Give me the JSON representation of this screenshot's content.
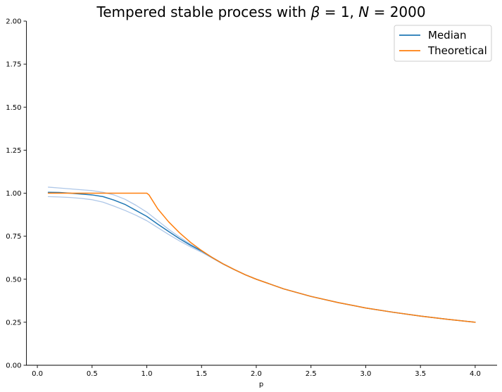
{
  "chart_data": {
    "type": "line",
    "title": "Tempered stable process with β = 1, N = 2000",
    "title_parts": {
      "prefix": "Tempered stable process with ",
      "beta_symbol": "β",
      "beta_eq": " = 1, ",
      "n_symbol": "N",
      "n_eq": " = 2000"
    },
    "xlabel": "p",
    "ylabel": "",
    "xlim": [
      -0.1,
      4.2
    ],
    "ylim": [
      0.0,
      2.0
    ],
    "xticks": [
      "0.0",
      "0.5",
      "1.0",
      "1.5",
      "2.0",
      "2.5",
      "3.0",
      "3.5",
      "4.0"
    ],
    "yticks": [
      "0.00",
      "0.25",
      "0.50",
      "0.75",
      "1.00",
      "1.25",
      "1.50",
      "1.75",
      "2.00"
    ],
    "grid": false,
    "legend_position": "top-right",
    "series": [
      {
        "name": "Median",
        "color": "#1f77b4",
        "x": [
          0.1,
          0.2,
          0.3,
          0.4,
          0.5,
          0.6,
          0.7,
          0.8,
          0.9,
          1.0,
          1.1,
          1.2,
          1.3,
          1.4,
          1.5,
          1.6,
          1.7,
          1.8,
          1.9,
          2.0,
          2.25,
          2.5,
          2.75,
          3.0,
          3.25,
          3.5,
          3.75,
          4.0
        ],
        "y": [
          1.005,
          1.004,
          1.0,
          0.995,
          0.99,
          0.98,
          0.96,
          0.935,
          0.9,
          0.865,
          0.82,
          0.777,
          0.735,
          0.697,
          0.664,
          0.625,
          0.588,
          0.556,
          0.526,
          0.5,
          0.444,
          0.4,
          0.364,
          0.333,
          0.308,
          0.286,
          0.267,
          0.25
        ]
      },
      {
        "name": "Theoretical",
        "color": "#ff7f0e",
        "x": [
          0.1,
          0.2,
          0.3,
          0.4,
          0.5,
          0.6,
          0.7,
          0.8,
          0.9,
          1.0,
          1.02,
          1.1,
          1.2,
          1.3,
          1.4,
          1.5,
          1.6,
          1.7,
          1.8,
          1.9,
          2.0,
          2.25,
          2.5,
          2.75,
          3.0,
          3.25,
          3.5,
          3.75,
          4.0
        ],
        "y": [
          1.0,
          1.0,
          1.0,
          1.0,
          1.0,
          1.0,
          1.0,
          1.0,
          1.0,
          1.0,
          0.99,
          0.909,
          0.833,
          0.769,
          0.714,
          0.667,
          0.625,
          0.588,
          0.556,
          0.526,
          0.5,
          0.444,
          0.4,
          0.364,
          0.333,
          0.308,
          0.286,
          0.267,
          0.25
        ]
      },
      {
        "color": "#aec7e8",
        "x": [
          0.1,
          0.2,
          0.3,
          0.4,
          0.5,
          0.6,
          0.7,
          0.8,
          0.9,
          1.0,
          1.1,
          1.2,
          1.3,
          1.4,
          1.5,
          1.6,
          1.7,
          1.8,
          1.9,
          2.0,
          2.25,
          2.5,
          2.75,
          3.0,
          3.25,
          3.5,
          3.75,
          4.0
        ],
        "y": [
          1.035,
          1.03,
          1.025,
          1.02,
          1.015,
          1.005,
          0.99,
          0.965,
          0.93,
          0.89,
          0.84,
          0.79,
          0.745,
          0.703,
          0.666,
          0.626,
          0.589,
          0.556,
          0.526,
          0.5,
          0.444,
          0.4,
          0.364,
          0.333,
          0.308,
          0.286,
          0.267,
          0.25
        ]
      },
      {
        "color": "#aec7e8",
        "x": [
          0.1,
          0.2,
          0.3,
          0.4,
          0.5,
          0.6,
          0.7,
          0.8,
          0.9,
          1.0,
          1.1,
          1.2,
          1.3,
          1.4,
          1.5,
          1.6,
          1.7,
          1.8,
          1.9,
          2.0,
          2.25,
          2.5,
          2.75,
          3.0,
          3.25,
          3.5,
          3.75,
          4.0
        ],
        "y": [
          0.98,
          0.978,
          0.975,
          0.97,
          0.962,
          0.948,
          0.925,
          0.9,
          0.872,
          0.84,
          0.8,
          0.76,
          0.722,
          0.688,
          0.657,
          0.622,
          0.586,
          0.555,
          0.526,
          0.5,
          0.444,
          0.4,
          0.364,
          0.333,
          0.308,
          0.286,
          0.267,
          0.25
        ]
      }
    ]
  }
}
